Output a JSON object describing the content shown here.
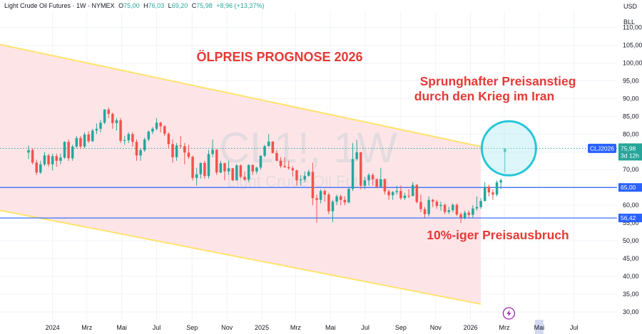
{
  "header": {
    "symbol": "Light Crude Oil Futures · 1W · NYMEX",
    "open_label": "O",
    "open": "75,00",
    "high_label": "H",
    "high": "76,03",
    "low_label": "L",
    "low": "69,20",
    "close_label": "C",
    "close": "75,98",
    "change": "+8,96 (+13,37%)"
  },
  "price_axis": {
    "currency": "USD",
    "unit": "BLL"
  },
  "watermark": {
    "ticker": "CL1!, 1W",
    "name": "Light Crude Oil Futures"
  },
  "annotations": {
    "title": "ÖLPREIS PROGNOSE 2026",
    "surge_line1": "Sprunghafter Preisanstieg",
    "surge_line2": "durch den Krieg im Iran",
    "breakout": "10%-iger Preisausbruch"
  },
  "badges": {
    "symbol": "CLJ2026",
    "last_price": "75,98",
    "countdown": "3d 12h",
    "level_65": "65,00",
    "level_56": "56,42"
  },
  "colors": {
    "up": "#26a69a",
    "down": "#ef5350",
    "channel_fill": "#fde2e4",
    "channel_border": "#ffe36b",
    "hline": "#2962ff",
    "circle": "#26c6da",
    "circle_fill": "#b2ebf2",
    "last_line": "#26a69a",
    "annotation": "#e53935"
  },
  "icons": {
    "event": "lightning-bolt-icon"
  },
  "chart_data": {
    "type": "candlestick",
    "symbol": "CL1!",
    "interval": "1W",
    "y_ticks": [
      30,
      35,
      40,
      45,
      50,
      55,
      60,
      65,
      70,
      75,
      80,
      85,
      90,
      95,
      100,
      105,
      110
    ],
    "y_tick_labels": [
      "30,00",
      "35,00",
      "40,00",
      "45,00",
      "50,00",
      "55,00",
      "60,00",
      "65,00",
      "70,00",
      "75,00",
      "80,00",
      "85,00",
      "90,00",
      "95,00",
      "100,00",
      "105,00",
      "110,00"
    ],
    "ylim": [
      27.8,
      114.5
    ],
    "x_labels": [
      "2024",
      "Mrz",
      "Mai",
      "Jul",
      "Sep",
      "Nov",
      "2025",
      "Mrz",
      "Mai",
      "Jul",
      "Sep",
      "Nov",
      "2026",
      "Mrz",
      "Mai",
      "Jul"
    ],
    "x_start": "2023-11-20",
    "x_end": "2026-07-20",
    "horizontal_levels": [
      65.0,
      56.42
    ],
    "last_price": 75.98,
    "channel": {
      "upper": [
        [
          "2023-11-20",
          103.5
        ],
        [
          "2026-01-19",
          76.5
        ]
      ],
      "lower": [
        [
          "2023-11-20",
          57.0
        ],
        [
          "2026-01-19",
          32.2
        ]
      ]
    },
    "circle_center": [
      "2026-03-09",
      76.0
    ],
    "candles": [
      [
        "2023-11-20",
        74.8,
        76.8,
        73.0,
        75.5
      ],
      [
        "2023-11-27",
        75.5,
        76.0,
        71.5,
        72.0
      ],
      [
        "2023-12-04",
        72.0,
        72.8,
        68.5,
        69.2
      ],
      [
        "2023-12-11",
        69.2,
        72.5,
        68.8,
        71.5
      ],
      [
        "2023-12-18",
        71.5,
        75.0,
        71.0,
        74.0
      ],
      [
        "2023-12-25",
        74.0,
        74.5,
        70.8,
        71.5
      ],
      [
        "2024-01-01",
        71.5,
        74.5,
        69.8,
        73.8
      ],
      [
        "2024-01-08",
        73.8,
        74.5,
        70.8,
        72.5
      ],
      [
        "2024-01-15",
        72.5,
        74.5,
        71.5,
        73.4
      ],
      [
        "2024-01-22",
        73.4,
        78.0,
        73.0,
        77.8
      ],
      [
        "2024-01-29",
        77.8,
        78.5,
        72.5,
        73.2
      ],
      [
        "2024-02-05",
        73.2,
        77.0,
        72.5,
        76.5
      ],
      [
        "2024-02-12",
        76.5,
        79.5,
        76.0,
        78.9
      ],
      [
        "2024-02-19",
        78.9,
        79.5,
        75.8,
        76.5
      ],
      [
        "2024-02-26",
        76.5,
        80.5,
        76.0,
        79.9
      ],
      [
        "2024-03-04",
        79.9,
        80.8,
        77.5,
        78.0
      ],
      [
        "2024-03-11",
        78.0,
        81.5,
        77.8,
        81.0
      ],
      [
        "2024-03-18",
        81.0,
        83.0,
        80.0,
        81.5
      ],
      [
        "2024-03-25",
        81.5,
        84.0,
        80.5,
        83.2
      ],
      [
        "2024-04-01",
        83.2,
        87.0,
        82.8,
        86.9
      ],
      [
        "2024-04-08",
        86.9,
        87.5,
        84.5,
        85.7
      ],
      [
        "2024-04-15",
        85.7,
        86.0,
        81.5,
        83.1
      ],
      [
        "2024-04-22",
        83.1,
        84.5,
        81.0,
        83.9
      ],
      [
        "2024-04-29",
        83.9,
        84.5,
        77.5,
        78.1
      ],
      [
        "2024-05-06",
        78.1,
        79.5,
        77.0,
        78.3
      ],
      [
        "2024-05-13",
        78.3,
        80.5,
        77.5,
        80.0
      ],
      [
        "2024-05-20",
        80.0,
        80.5,
        76.5,
        77.8
      ],
      [
        "2024-05-27",
        77.8,
        78.5,
        72.5,
        74.0
      ],
      [
        "2024-06-03",
        74.0,
        76.0,
        72.5,
        75.5
      ],
      [
        "2024-06-10",
        75.5,
        79.0,
        75.0,
        78.5
      ],
      [
        "2024-06-17",
        78.5,
        81.0,
        78.0,
        80.7
      ],
      [
        "2024-06-24",
        80.7,
        82.0,
        80.0,
        81.5
      ],
      [
        "2024-07-01",
        81.5,
        84.5,
        81.0,
        83.2
      ],
      [
        "2024-07-08",
        83.2,
        83.5,
        80.5,
        82.2
      ],
      [
        "2024-07-15",
        82.2,
        82.5,
        79.5,
        80.1
      ],
      [
        "2024-07-22",
        80.1,
        80.5,
        76.0,
        77.2
      ],
      [
        "2024-07-29",
        77.2,
        78.5,
        72.0,
        73.5
      ],
      [
        "2024-08-05",
        73.5,
        77.5,
        72.5,
        76.8
      ],
      [
        "2024-08-12",
        76.8,
        79.5,
        76.0,
        76.6
      ],
      [
        "2024-08-19",
        76.6,
        77.5,
        71.5,
        74.8
      ],
      [
        "2024-08-26",
        74.8,
        77.0,
        73.0,
        73.6
      ],
      [
        "2024-09-02",
        73.6,
        74.0,
        67.0,
        67.7
      ],
      [
        "2024-09-09",
        67.7,
        70.5,
        65.5,
        68.7
      ],
      [
        "2024-09-16",
        68.7,
        72.0,
        67.5,
        71.9
      ],
      [
        "2024-09-23",
        71.9,
        72.5,
        67.5,
        68.2
      ],
      [
        "2024-09-30",
        68.2,
        75.5,
        67.5,
        74.4
      ],
      [
        "2024-10-07",
        74.4,
        78.5,
        73.5,
        75.6
      ],
      [
        "2024-10-14",
        75.6,
        75.8,
        68.5,
        69.2
      ],
      [
        "2024-10-21",
        69.2,
        72.5,
        69.0,
        71.8
      ],
      [
        "2024-10-28",
        71.8,
        72.0,
        67.0,
        69.5
      ],
      [
        "2024-11-04",
        69.5,
        72.5,
        68.5,
        70.4
      ],
      [
        "2024-11-11",
        70.4,
        70.5,
        66.8,
        67.0
      ],
      [
        "2024-11-18",
        67.0,
        71.5,
        67.0,
        71.2
      ],
      [
        "2024-11-25",
        71.2,
        71.5,
        67.5,
        68.0
      ],
      [
        "2024-12-02",
        68.0,
        69.5,
        66.8,
        67.2
      ],
      [
        "2024-12-09",
        67.2,
        71.5,
        66.5,
        71.3
      ],
      [
        "2024-12-16",
        71.3,
        71.5,
        68.5,
        69.5
      ],
      [
        "2024-12-23",
        69.5,
        70.8,
        68.8,
        70.6
      ],
      [
        "2024-12-30",
        70.6,
        74.0,
        70.0,
        73.9
      ],
      [
        "2025-01-06",
        73.9,
        77.0,
        73.5,
        76.6
      ],
      [
        "2025-01-13",
        76.6,
        80.0,
        76.5,
        77.9
      ],
      [
        "2025-01-20",
        77.9,
        78.0,
        74.5,
        74.7
      ],
      [
        "2025-01-27",
        74.7,
        75.5,
        72.5,
        72.5
      ],
      [
        "2025-02-03",
        72.5,
        73.5,
        70.5,
        71.0
      ],
      [
        "2025-02-10",
        71.0,
        73.5,
        70.5,
        70.7
      ],
      [
        "2025-02-17",
        70.7,
        72.5,
        70.0,
        70.4
      ],
      [
        "2025-02-24",
        70.4,
        71.0,
        68.0,
        69.8
      ],
      [
        "2025-03-03",
        69.8,
        70.0,
        65.5,
        67.0
      ],
      [
        "2025-03-10",
        67.0,
        68.5,
        65.5,
        67.2
      ],
      [
        "2025-03-17",
        67.2,
        69.5,
        66.5,
        68.3
      ],
      [
        "2025-03-24",
        68.3,
        70.0,
        68.0,
        69.4
      ],
      [
        "2025-03-31",
        69.4,
        72.0,
        60.0,
        61.99
      ],
      [
        "2025-04-07",
        61.99,
        63.0,
        55.1,
        61.5
      ],
      [
        "2025-04-14",
        61.5,
        64.5,
        60.5,
        64.0
      ],
      [
        "2025-04-21",
        64.0,
        64.5,
        61.0,
        63.0
      ],
      [
        "2025-04-28",
        63.0,
        63.5,
        57.5,
        58.3
      ],
      [
        "2025-05-05",
        58.3,
        61.5,
        55.3,
        61.0
      ],
      [
        "2025-05-12",
        61.0,
        63.0,
        60.0,
        62.5
      ],
      [
        "2025-05-19",
        62.5,
        63.0,
        60.0,
        61.5
      ],
      [
        "2025-05-26",
        61.5,
        62.5,
        60.0,
        60.8
      ],
      [
        "2025-06-02",
        60.8,
        65.0,
        60.5,
        64.6
      ],
      [
        "2025-06-09",
        64.6,
        77.5,
        64.0,
        72.98
      ],
      [
        "2025-06-16",
        72.98,
        78.4,
        72.5,
        74.9
      ],
      [
        "2025-06-23",
        74.9,
        75.0,
        64.5,
        65.5
      ],
      [
        "2025-06-30",
        65.5,
        68.0,
        64.5,
        67.0
      ],
      [
        "2025-07-07",
        67.0,
        69.0,
        65.5,
        68.5
      ],
      [
        "2025-07-14",
        68.5,
        69.0,
        65.5,
        67.3
      ],
      [
        "2025-07-21",
        67.3,
        67.5,
        64.8,
        65.2
      ],
      [
        "2025-07-28",
        65.2,
        70.5,
        65.0,
        67.3
      ],
      [
        "2025-08-04",
        67.3,
        67.5,
        63.0,
        63.9
      ],
      [
        "2025-08-11",
        63.9,
        64.5,
        61.5,
        62.8
      ],
      [
        "2025-08-18",
        62.8,
        64.0,
        61.5,
        63.7
      ],
      [
        "2025-08-25",
        63.7,
        65.5,
        63.0,
        64.0
      ],
      [
        "2025-09-01",
        64.0,
        65.5,
        61.5,
        62.0
      ],
      [
        "2025-09-08",
        62.0,
        63.5,
        61.5,
        62.7
      ],
      [
        "2025-09-15",
        62.7,
        64.5,
        62.0,
        62.6
      ],
      [
        "2025-09-22",
        62.6,
        66.5,
        62.5,
        65.7
      ],
      [
        "2025-09-29",
        65.7,
        66.0,
        60.5,
        60.9
      ],
      [
        "2025-10-06",
        60.9,
        63.0,
        58.0,
        58.9
      ],
      [
        "2025-10-13",
        58.9,
        59.5,
        56.5,
        57.5
      ],
      [
        "2025-10-20",
        57.5,
        62.5,
        56.8,
        61.5
      ],
      [
        "2025-10-27",
        61.5,
        61.8,
        59.5,
        61.0
      ],
      [
        "2025-11-03",
        61.0,
        61.5,
        59.0,
        59.8
      ],
      [
        "2025-11-10",
        59.8,
        61.0,
        58.5,
        60.1
      ],
      [
        "2025-11-17",
        60.1,
        60.5,
        57.5,
        58.1
      ],
      [
        "2025-11-24",
        58.1,
        59.5,
        57.5,
        58.6
      ],
      [
        "2025-12-01",
        58.6,
        60.5,
        58.0,
        60.1
      ],
      [
        "2025-12-08",
        60.1,
        60.5,
        57.0,
        57.4
      ],
      [
        "2025-12-15",
        57.4,
        58.0,
        55.0,
        56.5
      ],
      [
        "2025-12-22",
        56.5,
        58.5,
        56.0,
        57.9
      ],
      [
        "2025-12-29",
        57.9,
        58.5,
        56.5,
        57.3
      ],
      [
        "2026-01-05",
        57.3,
        60.0,
        56.5,
        59.1
      ],
      [
        "2026-01-12",
        59.1,
        62.5,
        58.5,
        59.5
      ],
      [
        "2026-01-19",
        59.5,
        62.0,
        59.0,
        61.2
      ],
      [
        "2026-01-26",
        61.2,
        66.5,
        61.0,
        65.2
      ],
      [
        "2026-02-02",
        65.2,
        65.8,
        62.5,
        63.6
      ],
      [
        "2026-02-09",
        63.6,
        64.5,
        61.5,
        63.0
      ],
      [
        "2026-02-16",
        63.0,
        67.0,
        62.5,
        66.4
      ],
      [
        "2026-02-23",
        66.4,
        67.5,
        64.5,
        67.0
      ],
      [
        "2026-03-02",
        75.0,
        76.03,
        69.2,
        75.98
      ]
    ]
  }
}
